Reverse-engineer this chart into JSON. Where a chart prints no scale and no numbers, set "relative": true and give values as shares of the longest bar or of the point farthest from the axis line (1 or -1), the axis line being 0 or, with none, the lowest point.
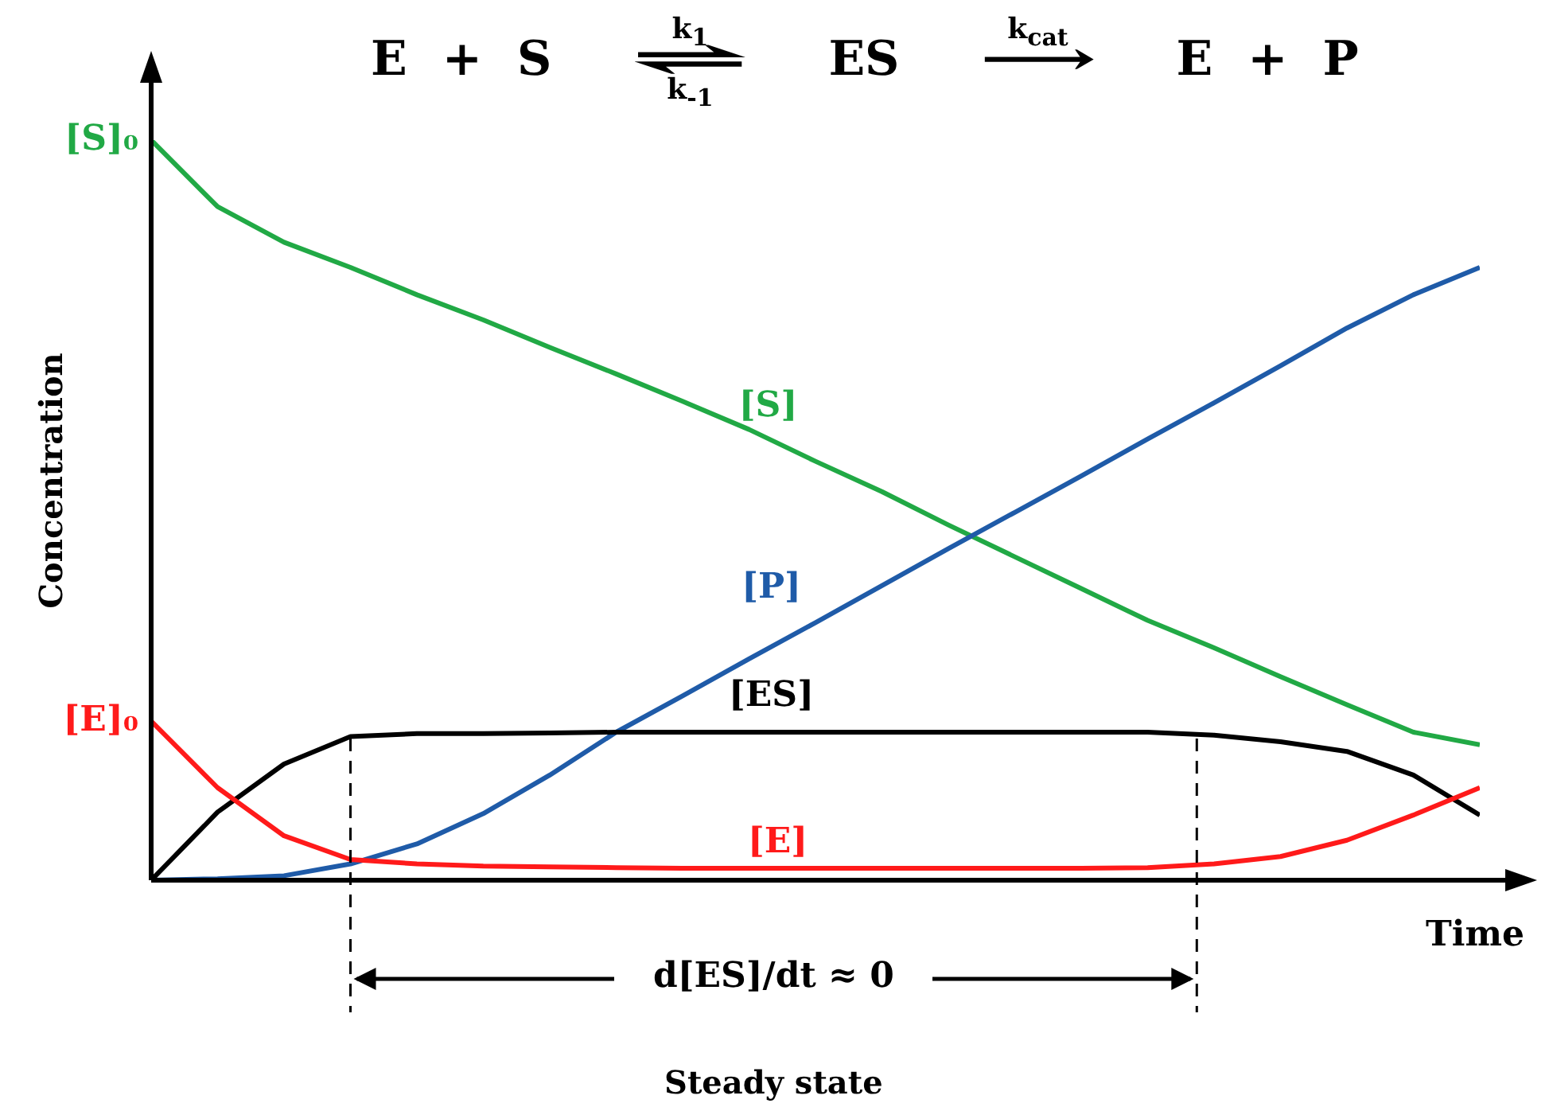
{
  "chart_data": {
    "type": "line",
    "relative": true,
    "title": "E + S ⇌ ES ⟶ E + P",
    "xlabel": "Time",
    "ylabel": "Concentration",
    "categories": [
      null,
      null,
      null,
      null,
      null,
      null,
      null,
      null,
      null,
      null,
      null,
      null,
      null,
      null,
      null,
      null,
      null,
      null,
      null,
      null,
      null
    ],
    "series": [
      {
        "name": "[S]",
        "color": "#21a945",
        "values": [
          1.0,
          0.91,
          0.862,
          0.828,
          0.791,
          0.757,
          0.72,
          0.684,
          0.647,
          0.609,
          0.566,
          0.525,
          0.48,
          0.437,
          0.394,
          0.351,
          0.314,
          0.275,
          0.237,
          0.2,
          0.183
        ]
      },
      {
        "name": "[P]",
        "color": "#1f5ba8",
        "values": [
          0,
          0.002,
          0.006,
          0.022,
          0.049,
          0.09,
          0.142,
          0.2,
          0.249,
          0.299,
          0.348,
          0.398,
          0.448,
          0.497,
          0.546,
          0.596,
          0.645,
          0.695,
          0.746,
          0.791,
          0.828
        ]
      },
      {
        "name": "[ES]",
        "color": "#000000",
        "values": [
          0,
          0.092,
          0.157,
          0.194,
          0.198,
          0.198,
          0.199,
          0.2,
          0.2,
          0.2,
          0.2,
          0.2,
          0.2,
          0.2,
          0.2,
          0.2,
          0.196,
          0.187,
          0.174,
          0.142,
          0.088
        ]
      },
      {
        "name": "[E]",
        "color": "#ff1a1a",
        "values": [
          0.215,
          0.125,
          0.06,
          0.028,
          0.022,
          0.019,
          0.018,
          0.017,
          0.016,
          0.016,
          0.016,
          0.016,
          0.016,
          0.016,
          0.016,
          0.017,
          0.022,
          0.032,
          0.054,
          0.088,
          0.125
        ]
      }
    ],
    "annotations": [
      "k$_{1}$",
      "k$_{-1}$",
      "k$_{cat}$",
      "[S]₀",
      "[E]₀",
      "d[ES]/dt ≈ 0",
      "Steady state"
    ]
  }
}
